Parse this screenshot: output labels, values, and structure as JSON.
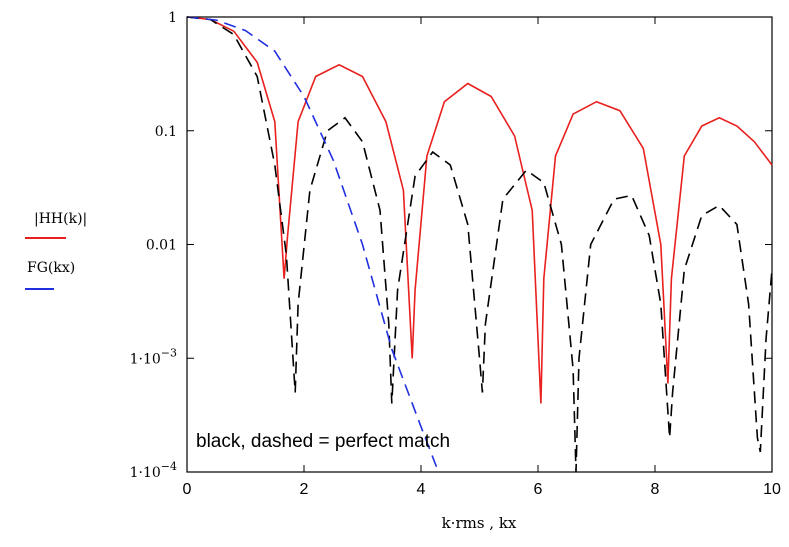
{
  "chart_data": {
    "type": "line",
    "xlabel": "k·rms , kx",
    "x_range": [
      0,
      10
    ],
    "y_range": [
      0.0001,
      1
    ],
    "y_scale": "log",
    "grid": false,
    "x_ticks": [
      {
        "value": 0,
        "label": "0"
      },
      {
        "value": 2,
        "label": "2"
      },
      {
        "value": 4,
        "label": "4"
      },
      {
        "value": 6,
        "label": "6"
      },
      {
        "value": 8,
        "label": "8"
      },
      {
        "value": 10,
        "label": "10"
      }
    ],
    "y_ticks": [
      {
        "value": 1,
        "label": "1"
      },
      {
        "value": 0.1,
        "label": "0.1"
      },
      {
        "value": 0.01,
        "label": "0.01"
      },
      {
        "value": 0.001,
        "label": "1·10",
        "exp": "−3"
      },
      {
        "value": 0.0001,
        "label": "1·10",
        "exp": "−4"
      }
    ],
    "legend": [
      {
        "label": "|HH(k)|",
        "color": "#e8201e",
        "style": "solid"
      },
      {
        "label": "FG(kx)",
        "color": "#2030e0",
        "style": "dashed"
      }
    ],
    "annotation": "black, dashed = perfect match",
    "series": [
      {
        "color": "#e8201e",
        "style": "solid",
        "x": [
          0,
          0.4,
          0.8,
          1.2,
          1.5,
          1.66,
          1.72,
          1.9,
          2.2,
          2.6,
          3.0,
          3.4,
          3.7,
          3.85,
          3.9,
          4.1,
          4.4,
          4.8,
          5.2,
          5.6,
          5.9,
          6.05,
          6.1,
          6.3,
          6.6,
          7.0,
          7.4,
          7.8,
          8.1,
          8.22,
          8.28,
          8.5,
          8.8,
          9.1,
          9.4,
          9.7,
          10.0
        ],
        "y": [
          1,
          0.95,
          0.75,
          0.4,
          0.12,
          0.005,
          0.012,
          0.12,
          0.3,
          0.38,
          0.3,
          0.12,
          0.03,
          0.001,
          0.004,
          0.06,
          0.18,
          0.26,
          0.2,
          0.09,
          0.02,
          0.0004,
          0.005,
          0.06,
          0.14,
          0.18,
          0.15,
          0.07,
          0.01,
          0.0006,
          0.005,
          0.06,
          0.11,
          0.13,
          0.11,
          0.08,
          0.05
        ]
      },
      {
        "color": "#000000",
        "style": "dashed",
        "x": [
          0,
          0.4,
          0.8,
          1.2,
          1.5,
          1.7,
          1.85,
          1.9,
          2.1,
          2.4,
          2.7,
          3.0,
          3.3,
          3.45,
          3.5,
          3.6,
          3.9,
          4.2,
          4.5,
          4.8,
          5.0,
          5.05,
          5.1,
          5.4,
          5.8,
          6.1,
          6.4,
          6.6,
          6.65,
          6.7,
          6.9,
          7.3,
          7.6,
          7.9,
          8.1,
          8.25,
          8.3,
          8.5,
          8.8,
          9.1,
          9.4,
          9.6,
          9.75,
          9.8,
          9.9,
          10.0
        ],
        "y": [
          1,
          0.95,
          0.7,
          0.3,
          0.05,
          0.008,
          0.0005,
          0.003,
          0.03,
          0.1,
          0.13,
          0.08,
          0.02,
          0.002,
          0.0004,
          0.004,
          0.04,
          0.065,
          0.05,
          0.015,
          0.001,
          0.0005,
          0.002,
          0.025,
          0.045,
          0.035,
          0.01,
          0.0008,
          0.0001,
          0.001,
          0.01,
          0.025,
          0.027,
          0.012,
          0.003,
          0.0002,
          0.0005,
          0.006,
          0.018,
          0.022,
          0.015,
          0.003,
          0.0002,
          0.00015,
          0.0015,
          0.006
        ]
      },
      {
        "color": "#2030e0",
        "style": "dashed",
        "x": [
          0,
          0.5,
          1.0,
          1.5,
          2.0,
          2.5,
          3.0,
          3.5,
          4.0,
          4.3
        ],
        "y": [
          1,
          0.94,
          0.76,
          0.5,
          0.2,
          0.055,
          0.01,
          0.0012,
          0.00025,
          0.0001
        ]
      }
    ]
  }
}
